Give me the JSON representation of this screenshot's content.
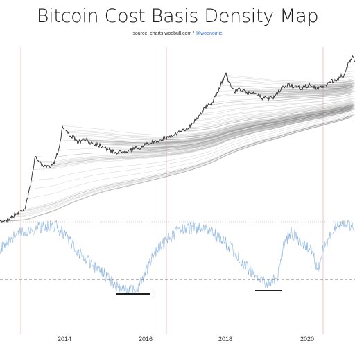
{
  "title": "Bitcoin Cost Basis Density Map",
  "source": {
    "prefix": "source: charts.woobull.com /",
    "handle": "@woonomic"
  },
  "colors": {
    "price_line": "#2b2b2b",
    "density_lines": "#8c8c8c",
    "oscillator": "#8ab4e0",
    "year_marker": "#e8b8b8",
    "bottom_marker": "#000000",
    "reference_dash": "#444444",
    "reference_dotted": "#999999"
  },
  "chart_data": {
    "type": "line",
    "x_tick_labels": [
      "2014",
      "2016",
      "2018",
      "2020"
    ],
    "panels": [
      {
        "name": "price",
        "series_type": "line with cost-basis density lines",
        "grid": false
      },
      {
        "name": "oscillator",
        "series_type": "line",
        "grid": false
      }
    ],
    "bottom_markers": 2
  }
}
